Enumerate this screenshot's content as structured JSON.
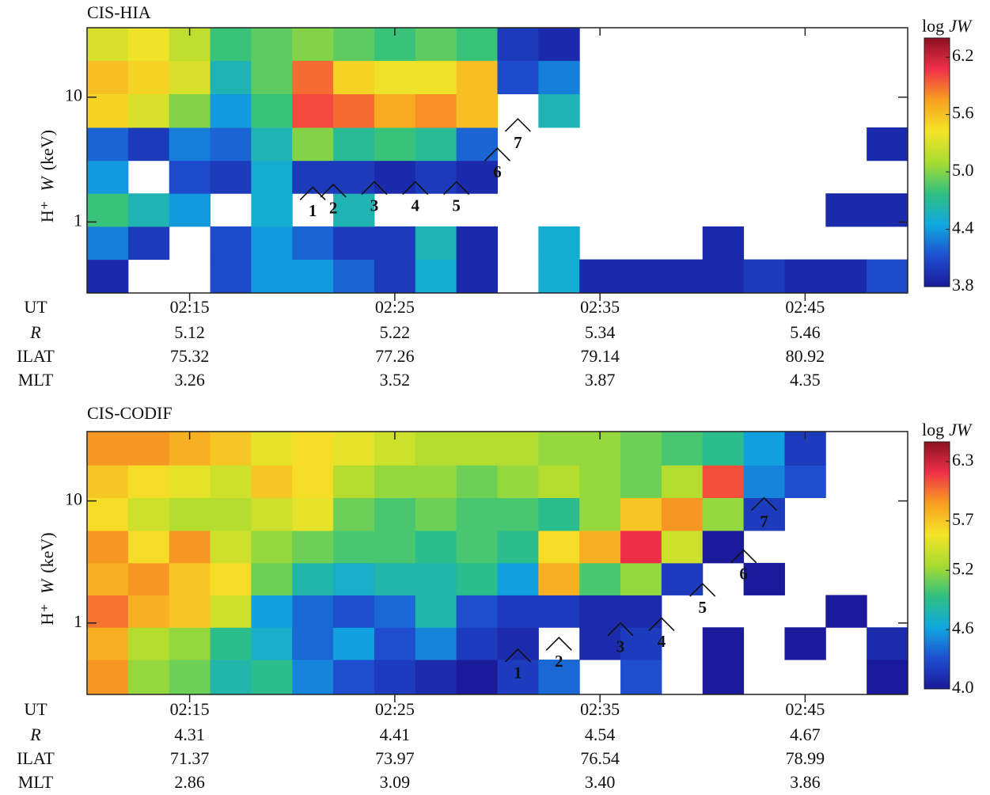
{
  "chart_data": [
    {
      "type": "heatmap",
      "title": "CIS-HIA",
      "x": [
        "02:11",
        "02:13",
        "02:15",
        "02:17",
        "02:19",
        "02:21",
        "02:23",
        "02:25",
        "02:27",
        "02:29",
        "02:31",
        "02:33",
        "02:35",
        "02:37",
        "02:39",
        "02:41",
        "02:43",
        "02:45",
        "02:47",
        "02:49"
      ],
      "y": [
        0.37,
        0.68,
        1.25,
        2.3,
        4.2,
        7.8,
        14.5,
        26.7
      ],
      "z": [
        [
          3.9,
          null,
          null,
          4.1,
          4.4,
          4.4,
          4.2,
          4.0,
          4.5,
          3.9,
          null,
          4.5,
          3.9,
          3.9,
          3.9,
          3.9,
          4.0,
          3.9,
          3.9,
          4.1
        ],
        [
          4.3,
          4.0,
          null,
          4.1,
          4.4,
          4.2,
          4.0,
          4.0,
          4.6,
          3.9,
          null,
          4.5,
          null,
          null,
          null,
          3.9,
          null,
          null,
          null,
          null
        ],
        [
          4.8,
          4.6,
          4.4,
          null,
          4.5,
          null,
          4.6,
          null,
          null,
          null,
          null,
          null,
          null,
          null,
          null,
          null,
          null,
          null,
          3.9,
          3.9
        ],
        [
          4.4,
          null,
          4.1,
          4.0,
          4.5,
          4.0,
          4.0,
          3.9,
          4.0,
          3.9,
          null,
          null,
          null,
          null,
          null,
          null,
          null,
          null,
          null,
          null
        ],
        [
          4.2,
          4.0,
          4.3,
          4.2,
          4.6,
          5.0,
          4.7,
          4.8,
          4.7,
          4.2,
          null,
          null,
          null,
          null,
          null,
          null,
          null,
          null,
          null,
          3.9
        ],
        [
          5.5,
          5.3,
          5.0,
          4.4,
          4.8,
          6.0,
          5.9,
          5.7,
          5.8,
          5.6,
          null,
          4.6,
          null,
          null,
          null,
          null,
          null,
          null,
          null,
          null
        ],
        [
          5.6,
          5.5,
          5.3,
          4.6,
          4.9,
          5.9,
          5.5,
          5.4,
          5.4,
          5.6,
          4.1,
          4.3,
          null,
          null,
          null,
          null,
          null,
          null,
          null,
          null
        ],
        [
          5.3,
          5.4,
          5.2,
          4.8,
          4.9,
          5.0,
          4.9,
          4.8,
          4.9,
          4.8,
          4.0,
          3.9,
          null,
          null,
          null,
          null,
          null,
          null,
          null,
          null
        ]
      ],
      "xlim": [
        "02:10",
        "02:50"
      ],
      "xticks": [
        "02:15",
        "02:25",
        "02:35",
        "02:45"
      ],
      "xlabel": "UT",
      "ylim": [
        0.27,
        36
      ],
      "yticks": [
        1,
        10
      ],
      "log_y": true,
      "ylabel": {
        "ion": "H⁺",
        "symbol": "W",
        "unit": "(keV)"
      },
      "colorbar": {
        "label": {
          "prefix": "log",
          "symbol": "JW"
        },
        "lim": [
          3.8,
          6.4
        ],
        "ticks": [
          6.2,
          5.6,
          {
            "value": 5,
            "label": "5.0"
          },
          4.4,
          3.8
        ],
        "colors": [
          "#1a1a9a",
          "#1e4fd0",
          "#10a8e0",
          "#30c080",
          "#a8dc30",
          "#f4e428",
          "#f8a020",
          "#f03048",
          "#8c1020"
        ]
      },
      "annotations": [
        {
          "label": "1",
          "x": "02:21",
          "y": 1.9
        },
        {
          "label": "2",
          "x": "02:22",
          "y": 2.0
        },
        {
          "label": "3",
          "x": "02:24",
          "y": 2.1
        },
        {
          "label": "4",
          "x": "02:26",
          "y": 2.1
        },
        {
          "label": "5",
          "x": "02:28",
          "y": 2.1
        },
        {
          "label": "6",
          "x": "02:30",
          "y": 3.9
        },
        {
          "label": "7",
          "x": "02:31",
          "y": 6.7
        }
      ],
      "orbit": [
        {
          "name": "R",
          "values": [
            5.12,
            5.22,
            5.34,
            5.46
          ]
        },
        {
          "name": "ILAT",
          "values": [
            75.32,
            77.26,
            79.14,
            80.92
          ]
        },
        {
          "name": "MLT",
          "values": [
            3.26,
            3.52,
            3.87,
            4.35
          ]
        }
      ]
    },
    {
      "type": "heatmap",
      "title": "CIS-CODIF",
      "x": [
        "02:11",
        "02:13",
        "02:15",
        "02:17",
        "02:19",
        "02:21",
        "02:23",
        "02:25",
        "02:27",
        "02:29",
        "02:31",
        "02:33",
        "02:35",
        "02:37",
        "02:39",
        "02:41",
        "02:43",
        "02:45",
        "02:47",
        "02:49"
      ],
      "y": [
        0.37,
        0.68,
        1.25,
        2.3,
        4.2,
        7.8,
        14.5,
        26.7
      ],
      "z": [
        [
          5.9,
          5.2,
          5.1,
          4.8,
          4.9,
          4.5,
          4.3,
          4.2,
          4.1,
          4.0,
          4.2,
          4.4,
          null,
          4.3,
          null,
          4.0,
          null,
          null,
          null,
          4.0
        ],
        [
          5.8,
          5.3,
          5.2,
          4.9,
          4.7,
          4.4,
          4.6,
          4.3,
          4.5,
          4.2,
          4.1,
          null,
          4.1,
          4.2,
          null,
          4.0,
          null,
          4.0,
          null,
          4.1
        ],
        [
          6.0,
          5.8,
          5.7,
          5.4,
          4.6,
          4.4,
          4.3,
          4.4,
          4.8,
          4.3,
          4.2,
          4.2,
          4.1,
          4.1,
          null,
          null,
          null,
          null,
          4.0,
          null
        ],
        [
          5.8,
          5.9,
          5.7,
          5.6,
          5.1,
          4.8,
          4.7,
          4.8,
          4.8,
          4.9,
          4.6,
          5.8,
          5.0,
          5.2,
          4.2,
          null,
          4.0,
          null,
          null,
          null
        ],
        [
          5.9,
          5.6,
          5.9,
          5.4,
          5.2,
          5.1,
          5.0,
          5.0,
          4.9,
          5.0,
          4.9,
          5.6,
          5.8,
          6.2,
          5.4,
          4.0,
          null,
          null,
          null,
          null
        ],
        [
          5.6,
          5.4,
          5.3,
          5.3,
          5.4,
          5.5,
          5.1,
          5.0,
          5.1,
          5.0,
          5.0,
          4.9,
          5.2,
          5.7,
          5.9,
          5.2,
          4.2,
          null,
          null,
          null
        ],
        [
          5.7,
          5.6,
          5.5,
          5.4,
          5.7,
          5.6,
          5.3,
          5.2,
          5.2,
          5.1,
          5.2,
          5.3,
          5.2,
          5.1,
          5.3,
          6.1,
          4.5,
          4.3,
          null,
          null
        ],
        [
          5.9,
          5.9,
          5.8,
          5.7,
          5.5,
          5.6,
          5.5,
          5.4,
          5.3,
          5.3,
          5.3,
          5.2,
          5.2,
          5.1,
          5.0,
          4.9,
          4.6,
          4.2,
          null,
          null
        ]
      ],
      "xlim": [
        "02:10",
        "02:50"
      ],
      "xticks": [
        "02:15",
        "02:25",
        "02:35",
        "02:45"
      ],
      "xlabel": "UT",
      "ylim": [
        0.26,
        37
      ],
      "yticks": [
        1,
        10
      ],
      "log_y": true,
      "ylabel": {
        "ion": "H⁺",
        "symbol": "W",
        "unit": "(keV)"
      },
      "colorbar": {
        "label": {
          "prefix": "log",
          "symbol": "JW"
        },
        "lim": [
          4.0,
          6.5
        ],
        "ticks": [
          6.3,
          5.7,
          5.2,
          4.6,
          {
            "value": 4,
            "label": "4.0"
          }
        ],
        "colors": [
          "#1a1a9a",
          "#1e4fd0",
          "#10a8e0",
          "#30c080",
          "#a8dc30",
          "#f4e428",
          "#f8a020",
          "#f03048",
          "#8c1020"
        ]
      },
      "annotations": [
        {
          "label": "1",
          "x": "02:31",
          "y": 0.61
        },
        {
          "label": "2",
          "x": "02:33",
          "y": 0.76
        },
        {
          "label": "3",
          "x": "02:36",
          "y": 1.0
        },
        {
          "label": "4",
          "x": "02:38",
          "y": 1.1
        },
        {
          "label": "5",
          "x": "02:40",
          "y": 2.1
        },
        {
          "label": "6",
          "x": "02:42",
          "y": 3.96
        },
        {
          "label": "7",
          "x": "02:43",
          "y": 10.6
        }
      ],
      "orbit": [
        {
          "name": "R",
          "values": [
            4.31,
            4.41,
            4.54,
            4.67
          ]
        },
        {
          "name": "ILAT",
          "values": [
            71.37,
            73.97,
            76.54,
            78.99
          ]
        },
        {
          "name": "MLT",
          "values": [
            2.86,
            3.09,
            {
              "value": 3.4,
              "label": "3.40"
            },
            3.86
          ]
        }
      ]
    }
  ]
}
